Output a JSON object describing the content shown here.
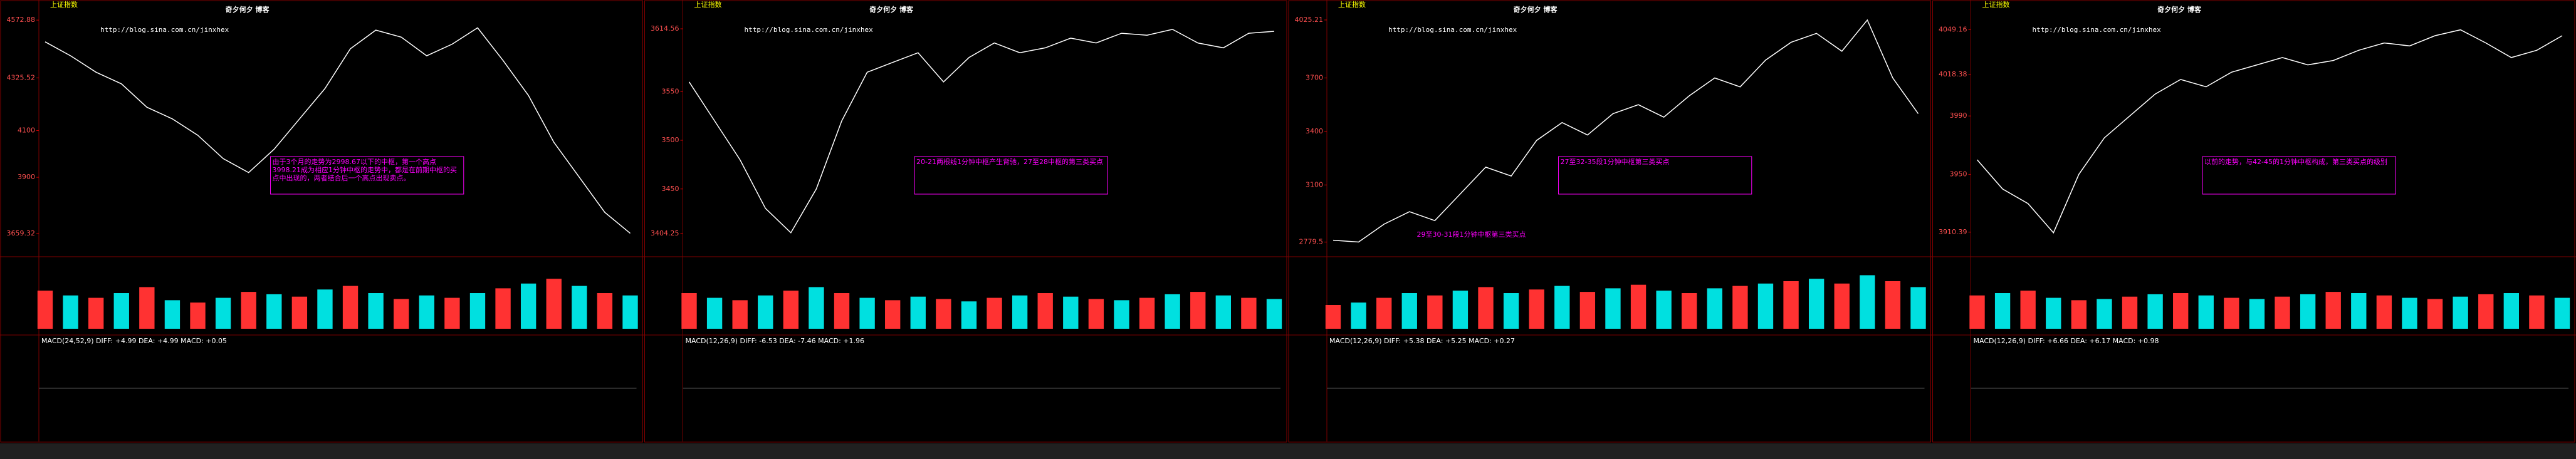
{
  "chart_data": [
    {
      "type": "line",
      "title": "上证指数",
      "watermark": "奇夕何夕 博客",
      "url": "http://blog.sina.com.cn/jinxhex",
      "color": "#ffffff",
      "values": [
        4480,
        4420,
        4350,
        4300,
        4200,
        4150,
        4080,
        3980,
        3920,
        4020,
        4150,
        4280,
        4450,
        4530,
        4500,
        4420,
        4470,
        4540,
        4400,
        4250,
        4050,
        3900,
        3750,
        3660
      ],
      "ylim": [
        3600,
        4600
      ],
      "yticks": [
        3659.32,
        3900,
        4100,
        4325.52,
        4572.88
      ],
      "volume": [
        320,
        280,
        260,
        300,
        350,
        240,
        220,
        260,
        310,
        290,
        270,
        330,
        360,
        300,
        250,
        280,
        260,
        300,
        340,
        380,
        420,
        360,
        300,
        280
      ],
      "volume_ylim": [
        0,
        500
      ],
      "indicator": "MACD(24,52,9) DIFF: +4.99 DEA: +4.99 MACD: +0.05",
      "note": "由于3个月的走势为2998.67以下的中枢，第一个高点3998.21成为相应1分钟中枢的走势中，都是在前期中枢的买点中出现的，两者结合后一个高点出现卖点。"
    },
    {
      "type": "line",
      "title": "上证指数",
      "watermark": "奇夕何夕 博客",
      "url": "http://blog.sina.com.cn/jinxhex",
      "color": "#ffffff",
      "values": [
        3560,
        3520,
        3480,
        3430,
        3405,
        3450,
        3520,
        3570,
        3580,
        3590,
        3560,
        3585,
        3600,
        3590,
        3595,
        3605,
        3600,
        3610,
        3608,
        3614,
        3600,
        3595,
        3610,
        3612
      ],
      "ylim": [
        3390,
        3630
      ],
      "yticks": [
        3404.25,
        3450,
        3500,
        3550,
        3614.56
      ],
      "volume": [
        300,
        260,
        240,
        280,
        320,
        350,
        300,
        260,
        240,
        270,
        250,
        230,
        260,
        280,
        300,
        270,
        250,
        240,
        260,
        290,
        310,
        280,
        260,
        250
      ],
      "volume_ylim": [
        0,
        500
      ],
      "indicator": "MACD(12,26,9) DIFF: -6.53 DEA: -7.46 MACD: +1.96",
      "note": "20-21两根线1分钟中枢产生背驰，27至28中枢的第三类买点"
    },
    {
      "type": "line",
      "title": "上证指数",
      "watermark": "奇夕何夕 博客",
      "url": "http://blog.sina.com.cn/jinxhex",
      "color": "#ffffff",
      "values": [
        2790,
        2780,
        2880,
        2950,
        2900,
        3050,
        3200,
        3150,
        3350,
        3450,
        3380,
        3500,
        3550,
        3480,
        3600,
        3700,
        3650,
        3800,
        3900,
        3950,
        3850,
        4025,
        3700,
        3500
      ],
      "ylim": [
        2750,
        4060
      ],
      "yticks": [
        2779.5,
        3100,
        3400,
        3700,
        4025.21
      ],
      "volume": [
        200,
        220,
        260,
        300,
        280,
        320,
        350,
        300,
        330,
        360,
        310,
        340,
        370,
        320,
        300,
        340,
        360,
        380,
        400,
        420,
        380,
        450,
        400,
        350
      ],
      "volume_ylim": [
        0,
        500
      ],
      "indicator": "MACD(12,26,9) DIFF: +5.38 DEA: +5.25 MACD: +0.27",
      "note": "27至32-35段1分钟中枢第三类买点",
      "note2": "29至30-31段1分钟中枢第三类买点"
    },
    {
      "type": "line",
      "title": "上证指数",
      "watermark": "奇夕何夕 博客",
      "url": "http://blog.sina.com.cn/jinxhex",
      "color": "#ffffff",
      "values": [
        3960,
        3940,
        3930,
        3910,
        3950,
        3975,
        3990,
        4005,
        4015,
        4010,
        4020,
        4025,
        4030,
        4025,
        4028,
        4035,
        4040,
        4038,
        4045,
        4049,
        4040,
        4030,
        4035,
        4045
      ],
      "ylim": [
        3900,
        4060
      ],
      "yticks": [
        3910.39,
        3950,
        3990,
        4018.38,
        4049.16
      ],
      "volume": [
        280,
        300,
        320,
        260,
        240,
        250,
        270,
        290,
        300,
        280,
        260,
        250,
        270,
        290,
        310,
        300,
        280,
        260,
        250,
        270,
        290,
        300,
        280,
        260
      ],
      "volume_ylim": [
        0,
        500
      ],
      "indicator": "MACD(12,26,9) DIFF: +6.66 DEA: +6.17 MACD: +0.98",
      "note": "以前的走势，与42-45的1分钟中枢构成，第三类买点的级别"
    }
  ]
}
